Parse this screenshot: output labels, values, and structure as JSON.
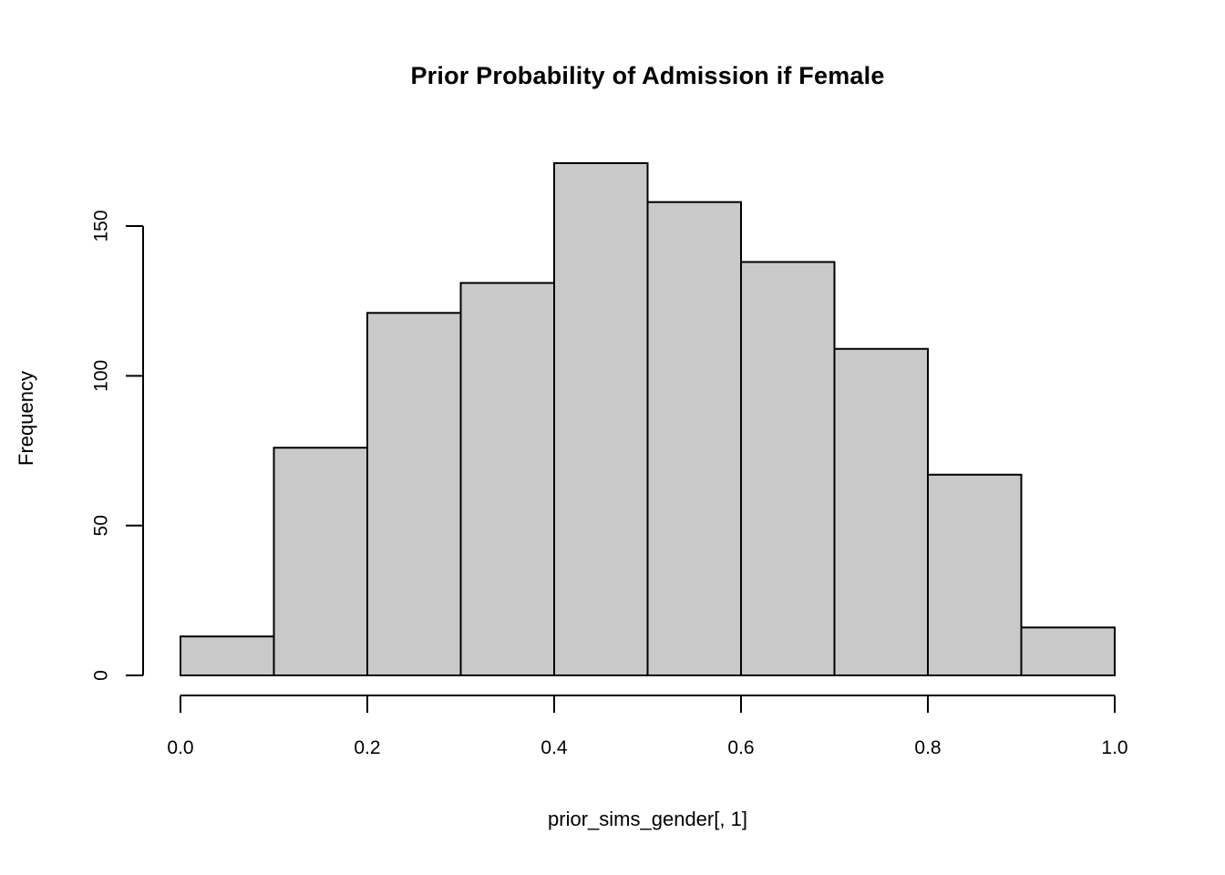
{
  "chart_data": {
    "type": "bar",
    "kind": "histogram",
    "title": "Prior Probability of Admission if Female",
    "xlabel": "prior_sims_gender[, 1]",
    "ylabel": "Frequency",
    "bin_edges": [
      0.0,
      0.1,
      0.2,
      0.3,
      0.4,
      0.5,
      0.6,
      0.7,
      0.8,
      0.9,
      1.0
    ],
    "counts": [
      13,
      76,
      121,
      131,
      171,
      158,
      138,
      109,
      67,
      16
    ],
    "x_tick_values": [
      0.0,
      0.2,
      0.4,
      0.6,
      0.8,
      1.0
    ],
    "x_tick_labels": [
      "0.0",
      "0.2",
      "0.4",
      "0.6",
      "0.8",
      "1.0"
    ],
    "y_tick_values": [
      0,
      50,
      100,
      150
    ],
    "y_tick_labels": [
      "0",
      "50",
      "100",
      "150"
    ],
    "xlim": [
      0.0,
      1.0
    ],
    "y_axis_range": [
      0,
      150
    ],
    "grid": "off",
    "legend": "none",
    "bar_fill_color": "#c9c9c9",
    "bar_stroke_color": "#000000",
    "axis_color": "#000000",
    "background_color": "#ffffff"
  }
}
